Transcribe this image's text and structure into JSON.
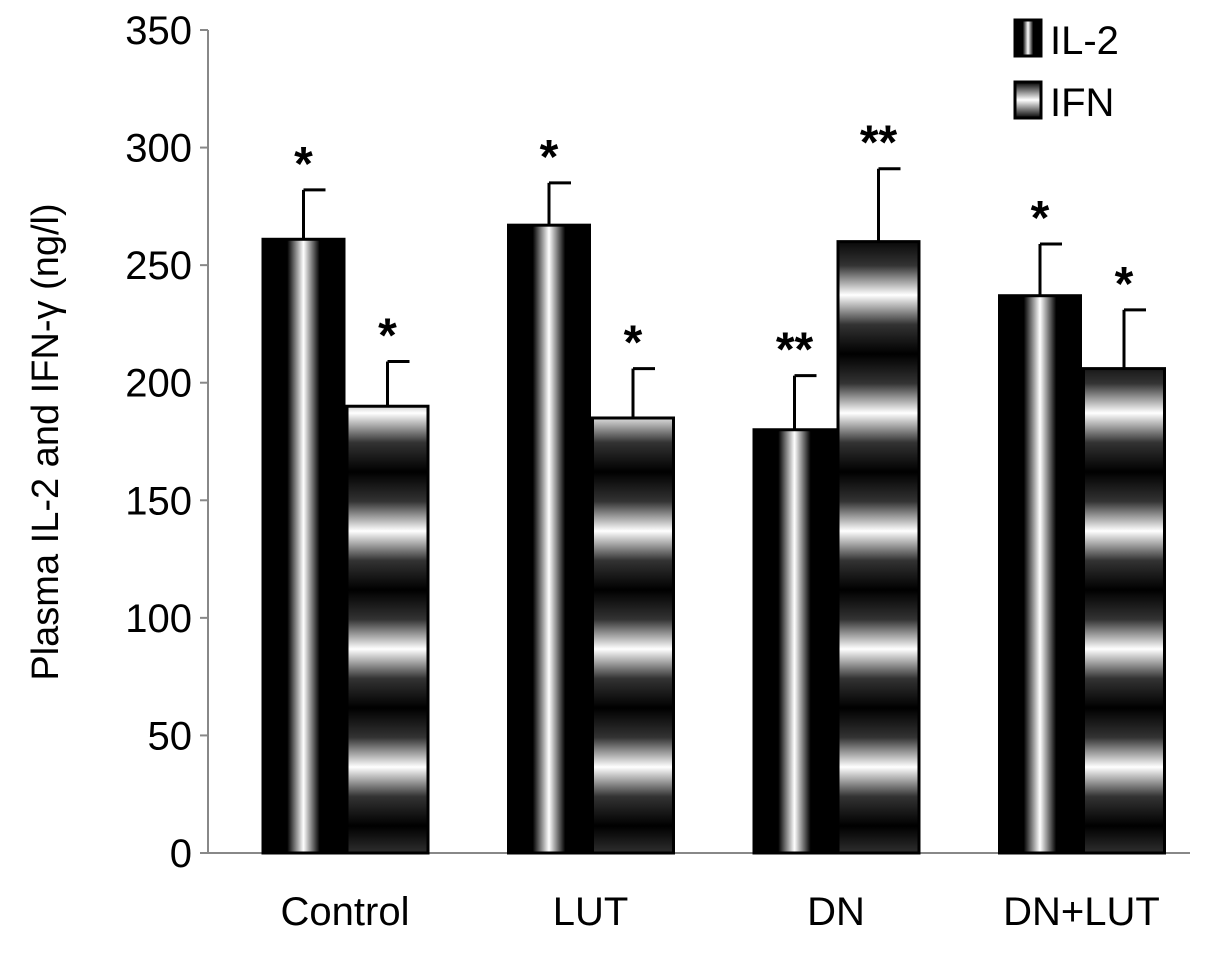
{
  "chart_data": {
    "type": "bar",
    "title": "",
    "xlabel": "",
    "ylabel": "Plasma IL-2 and IFN-γ (ng/l)",
    "ylim": [
      0,
      350
    ],
    "yticks": [
      0,
      50,
      100,
      150,
      200,
      250,
      300,
      350
    ],
    "ytick_labels": [
      "0",
      "50",
      "100",
      "150",
      "200",
      "250",
      "300",
      "350"
    ],
    "categories": [
      "Control",
      "LUT",
      "DN",
      "DN+LUT"
    ],
    "legend_position": "top-right",
    "series": [
      {
        "name": "IL-2",
        "values": [
          261,
          267,
          180,
          237
        ],
        "errors": [
          21,
          18,
          23,
          22
        ],
        "annotations": [
          "*",
          "*",
          "**",
          "*"
        ]
      },
      {
        "name": "IFN",
        "values": [
          190,
          185,
          260,
          206
        ],
        "errors": [
          19,
          21,
          31,
          25
        ],
        "annotations": [
          "*",
          "*",
          "**",
          "*"
        ]
      }
    ]
  }
}
